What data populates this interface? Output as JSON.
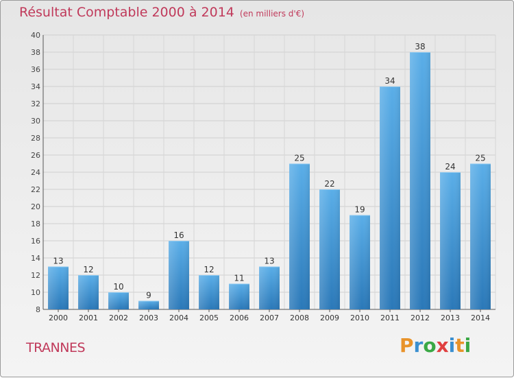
{
  "header": {
    "title": "Résultat Comptable 2000 à 2014",
    "subtitle": "(en milliers d'€)"
  },
  "footer": {
    "town": "TRANNES",
    "logo_letters": [
      "P",
      "r",
      "o",
      "x",
      "i",
      "t",
      "i"
    ],
    "logo_colors": [
      "#e8932a",
      "#3a8fd0",
      "#3aa845",
      "#e04040",
      "#3a8fd0",
      "#e8932a",
      "#3aa845"
    ]
  },
  "chart_data": {
    "type": "bar",
    "title": "Résultat Comptable 2000 à 2014",
    "subtitle": "(en milliers d'€)",
    "xlabel": "",
    "ylabel": "",
    "categories": [
      "2000",
      "2001",
      "2002",
      "2003",
      "2004",
      "2005",
      "2006",
      "2007",
      "2008",
      "2009",
      "2010",
      "2011",
      "2012",
      "2013",
      "2014"
    ],
    "values": [
      13,
      12,
      10,
      9,
      16,
      12,
      11,
      13,
      25,
      22,
      19,
      34,
      38,
      24,
      25
    ],
    "ylim": [
      8,
      40
    ],
    "yticks": [
      8,
      10,
      12,
      14,
      16,
      18,
      20,
      22,
      24,
      26,
      28,
      30,
      32,
      34,
      36,
      38,
      40
    ],
    "grid": true,
    "bar_color_top": "#5aaee8",
    "bar_color_bottom": "#2a78b8"
  }
}
